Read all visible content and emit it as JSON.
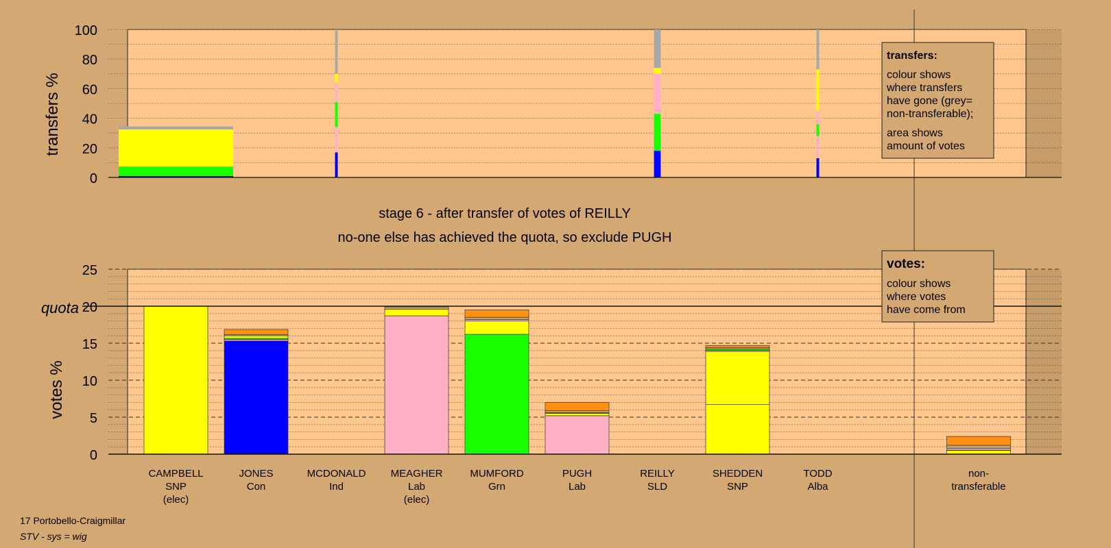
{
  "colors": {
    "background": "#d4a873",
    "plot_bg": "#ffc78e",
    "shade": "#c79c6b",
    "SNP": "#ffff00",
    "Con": "#0000ff",
    "Lab": "#ffb0c4",
    "Grn": "#18ff00",
    "Alba": "#ff9010",
    "Ind": "#c8a070",
    "SLD": "#ffe040",
    "nontransferable": "#a8a8a8"
  },
  "texts": {
    "stage": "stage 6 - after transfer of votes of REILLY",
    "status": "no-one else has achieved the quota, so exclude PUGH",
    "footer_ward": "17 Portobello-Craigmillar",
    "footer_system": "STV - sys = wig",
    "quota_label": "quota",
    "legend_transfers": {
      "title": "transfers:",
      "lines_a": [
        "colour shows",
        "where transfers",
        "have gone (grey=",
        "non-transferable);"
      ],
      "lines_b": [
        "area shows",
        "amount of votes"
      ]
    },
    "legend_votes": {
      "title": "votes:",
      "lines": [
        "colour shows",
        "where votes",
        "have come from"
      ]
    }
  },
  "chart_data": [
    {
      "type": "bar",
      "id": "transfers",
      "ylabel": "transfers %",
      "ylim": [
        0,
        100
      ],
      "yticks": [
        0,
        20,
        40,
        60,
        80,
        100
      ],
      "grid": "dotted every 10",
      "legend": "top-right",
      "columns": [
        {
          "from": "CAMPBELL",
          "width_share": 0.34,
          "segments": [
            {
              "to": "Con",
              "value": 1
            },
            {
              "to": "Grn",
              "value": 6
            },
            {
              "to": "Alba",
              "value": 0.5
            },
            {
              "to": "SNP",
              "value": 25
            },
            {
              "to": "nontransferable",
              "value": 2
            }
          ]
        },
        {
          "from": "MCDONALD",
          "width_share": 0.017,
          "segments": [
            {
              "to": "Con",
              "value": 17
            },
            {
              "to": "Lab",
              "value": 17
            },
            {
              "to": "Grn",
              "value": 17
            },
            {
              "to": "Lab",
              "value": 13
            },
            {
              "to": "SNP",
              "value": 6
            },
            {
              "to": "nontransferable",
              "value": 30
            }
          ]
        },
        {
          "from": "REILLY",
          "width_share": 0.05,
          "segments": [
            {
              "to": "Con",
              "value": 18
            },
            {
              "to": "Grn",
              "value": 25
            },
            {
              "to": "Lab",
              "value": 27
            },
            {
              "to": "SNP",
              "value": 4
            },
            {
              "to": "nontransferable",
              "value": 26
            }
          ]
        },
        {
          "from": "TODD",
          "width_share": 0.015,
          "segments": [
            {
              "to": "Con",
              "value": 13
            },
            {
              "to": "Lab",
              "value": 15
            },
            {
              "to": "Grn",
              "value": 8
            },
            {
              "to": "Lab",
              "value": 9
            },
            {
              "to": "SNP",
              "value": 28
            },
            {
              "to": "nontransferable",
              "value": 27
            }
          ]
        }
      ]
    },
    {
      "type": "bar",
      "id": "votes",
      "ylabel": "votes %",
      "ylim": [
        0,
        25
      ],
      "yticks": [
        0,
        5,
        10,
        15,
        20,
        25
      ],
      "quota": 20,
      "grid": "dotted every 1, dashed every 5",
      "legend": "top-right",
      "categories": [
        {
          "name": "CAMPBELL",
          "party": "SNP",
          "note": "(elec)",
          "segments": [
            {
              "source": "SNP",
              "value": 20
            }
          ]
        },
        {
          "name": "JONES",
          "party": "Con",
          "note": "",
          "segments": [
            {
              "source": "Con",
              "value": 15.3
            },
            {
              "source": "Lab",
              "value": 0.2
            },
            {
              "source": "Grn",
              "value": 0.15
            },
            {
              "source": "SNP",
              "value": 0.35
            },
            {
              "source": "Ind",
              "value": 0.15
            },
            {
              "source": "Alba",
              "value": 0.7
            }
          ]
        },
        {
          "name": "MCDONALD",
          "party": "Ind",
          "note": "",
          "segments": []
        },
        {
          "name": "MEAGHER",
          "party": "Lab",
          "note": "(elec)",
          "segments": [
            {
              "source": "Lab",
              "value": 18.7
            },
            {
              "source": "SNP",
              "value": 0.9
            },
            {
              "source": "Ind",
              "value": 0.3
            }
          ]
        },
        {
          "name": "MUMFORD",
          "party": "Grn",
          "note": "",
          "segments": [
            {
              "source": "Grn",
              "value": 16.2
            },
            {
              "source": "SNP",
              "value": 1.8
            },
            {
              "source": "Lab",
              "value": 0.2
            },
            {
              "source": "Ind",
              "value": 0.3
            },
            {
              "source": "Alba",
              "value": 1
            }
          ]
        },
        {
          "name": "PUGH",
          "party": "Lab",
          "note": "",
          "segments": [
            {
              "source": "Lab",
              "value": 5.2
            },
            {
              "source": "SNP",
              "value": 0.3
            },
            {
              "source": "Grn",
              "value": 0.1
            },
            {
              "source": "Ind",
              "value": 0.3
            },
            {
              "source": "Alba",
              "value": 1.1
            }
          ]
        },
        {
          "name": "REILLY",
          "party": "SLD",
          "note": "",
          "segments": []
        },
        {
          "name": "SHEDDEN",
          "party": "SNP",
          "note": "",
          "segments": [
            {
              "source": "SNP",
              "value": 6.7
            },
            {
              "source": "SNP",
              "value": 7.2
            },
            {
              "source": "Lab",
              "value": 0.15
            },
            {
              "source": "Grn",
              "value": 0.15
            },
            {
              "source": "Ind",
              "value": 0.2
            },
            {
              "source": "Alba",
              "value": 0.3
            }
          ]
        },
        {
          "name": "TODD",
          "party": "Alba",
          "note": "",
          "segments": []
        },
        {
          "name": "non-",
          "party": "transferable",
          "note": "",
          "segments": [
            {
              "source": "SNP",
              "value": 0.5
            },
            {
              "source": "Con",
              "value": 0.05
            },
            {
              "source": "Lab",
              "value": 0.25
            },
            {
              "source": "Ind",
              "value": 0.4
            },
            {
              "source": "Alba",
              "value": 1.2
            }
          ]
        }
      ]
    }
  ]
}
